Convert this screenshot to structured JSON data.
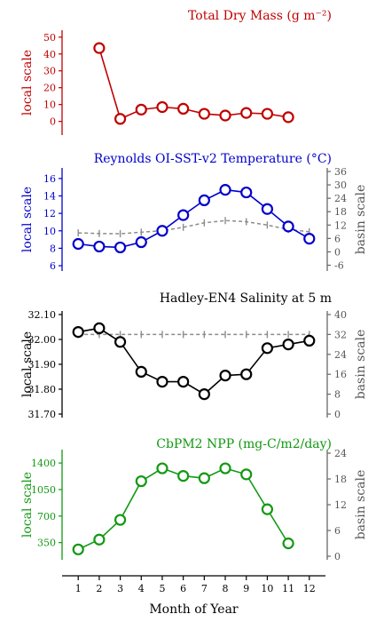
{
  "x_axis": {
    "label": "Month of Year",
    "ticks": [
      "1",
      "2",
      "3",
      "4",
      "5",
      "6",
      "7",
      "8",
      "9",
      "10",
      "11",
      "12"
    ]
  },
  "chart_data": [
    {
      "type": "line",
      "title": "Total Dry Mass (g m⁻²)",
      "ylabel_left": "local scale",
      "ylabel_right": "",
      "color": "#c00000",
      "xlim": [
        0.4,
        12.6
      ],
      "ylim_left": [
        -6,
        52
      ],
      "left_ticks": [
        0,
        10,
        20,
        30,
        40,
        50
      ],
      "x": [
        2,
        3,
        4,
        5,
        6,
        7,
        8,
        9,
        10,
        11
      ],
      "series": [
        {
          "axis": "left",
          "style": "solid-circles",
          "values": [
            43.5,
            1.5,
            7.0,
            8.5,
            7.5,
            4.5,
            3.5,
            5.0,
            4.5,
            2.5
          ]
        }
      ]
    },
    {
      "type": "line",
      "title": "Reynolds OI-SST-v2 Temperature (°C)",
      "ylabel_left": "local scale",
      "ylabel_right": "basin scale",
      "color": "#0000cc",
      "xlim": [
        0.4,
        12.6
      ],
      "ylim_left": [
        5.8,
        16.8
      ],
      "ylim_right": [
        -7,
        36
      ],
      "left_ticks": [
        6,
        8,
        10,
        12,
        14,
        16
      ],
      "right_ticks": [
        -6,
        0,
        6,
        12,
        18,
        24,
        30,
        36
      ],
      "x": [
        1,
        2,
        3,
        4,
        5,
        6,
        7,
        8,
        9,
        10,
        11,
        12
      ],
      "series": [
        {
          "axis": "left",
          "style": "solid-circles",
          "values": [
            8.5,
            8.2,
            8.1,
            8.7,
            10.0,
            11.8,
            13.5,
            14.7,
            14.4,
            12.5,
            10.5,
            9.1
          ]
        },
        {
          "axis": "right",
          "style": "dashed-errorbars",
          "values": [
            8.5,
            8.2,
            8.1,
            8.8,
            9.5,
            11.0,
            13.0,
            14.0,
            13.5,
            12.0,
            10.0,
            9.0
          ]
        }
      ]
    },
    {
      "type": "line",
      "title": "Hadley-EN4 Salinity at 5 m",
      "ylabel_left": "local scale",
      "ylabel_right": "basin scale",
      "color": "#000000",
      "xlim": [
        0.4,
        12.6
      ],
      "ylim_left": [
        31.7,
        32.1
      ],
      "ylim_right": [
        0,
        40
      ],
      "left_ticks": [
        31.7,
        31.8,
        31.9,
        32.0,
        32.1
      ],
      "right_ticks": [
        0,
        8,
        16,
        24,
        32,
        40
      ],
      "x": [
        1,
        2,
        3,
        4,
        5,
        6,
        7,
        8,
        9,
        10,
        11,
        12
      ],
      "series": [
        {
          "axis": "left",
          "style": "solid-circles",
          "values": [
            32.03,
            32.045,
            31.99,
            31.87,
            31.83,
            31.83,
            31.78,
            31.855,
            31.86,
            31.965,
            31.98,
            31.995
          ]
        },
        {
          "axis": "right",
          "style": "dashed-errorbars",
          "values": [
            32.0,
            32.0,
            32.0,
            32.0,
            32.0,
            32.0,
            32.0,
            32.0,
            32.0,
            32.0,
            32.0,
            32.0
          ]
        }
      ]
    },
    {
      "type": "line",
      "title": "CbPM2 NPP (mg-C/m2/day)",
      "ylabel_left": "local scale",
      "ylabel_right": "basin scale",
      "color": "#119911",
      "xlim": [
        0.4,
        12.6
      ],
      "ylim_left": [
        170,
        1530
      ],
      "ylim_right": [
        0,
        24
      ],
      "left_ticks": [
        350,
        700,
        1050,
        1400
      ],
      "right_ticks": [
        0,
        6,
        12,
        18,
        24
      ],
      "x": [
        1,
        2,
        3,
        4,
        5,
        6,
        7,
        8,
        9,
        10,
        11
      ],
      "series": [
        {
          "axis": "left",
          "style": "solid-circles",
          "values": [
            260,
            390,
            650,
            1160,
            1330,
            1230,
            1200,
            1330,
            1250,
            790,
            340
          ]
        }
      ]
    }
  ]
}
